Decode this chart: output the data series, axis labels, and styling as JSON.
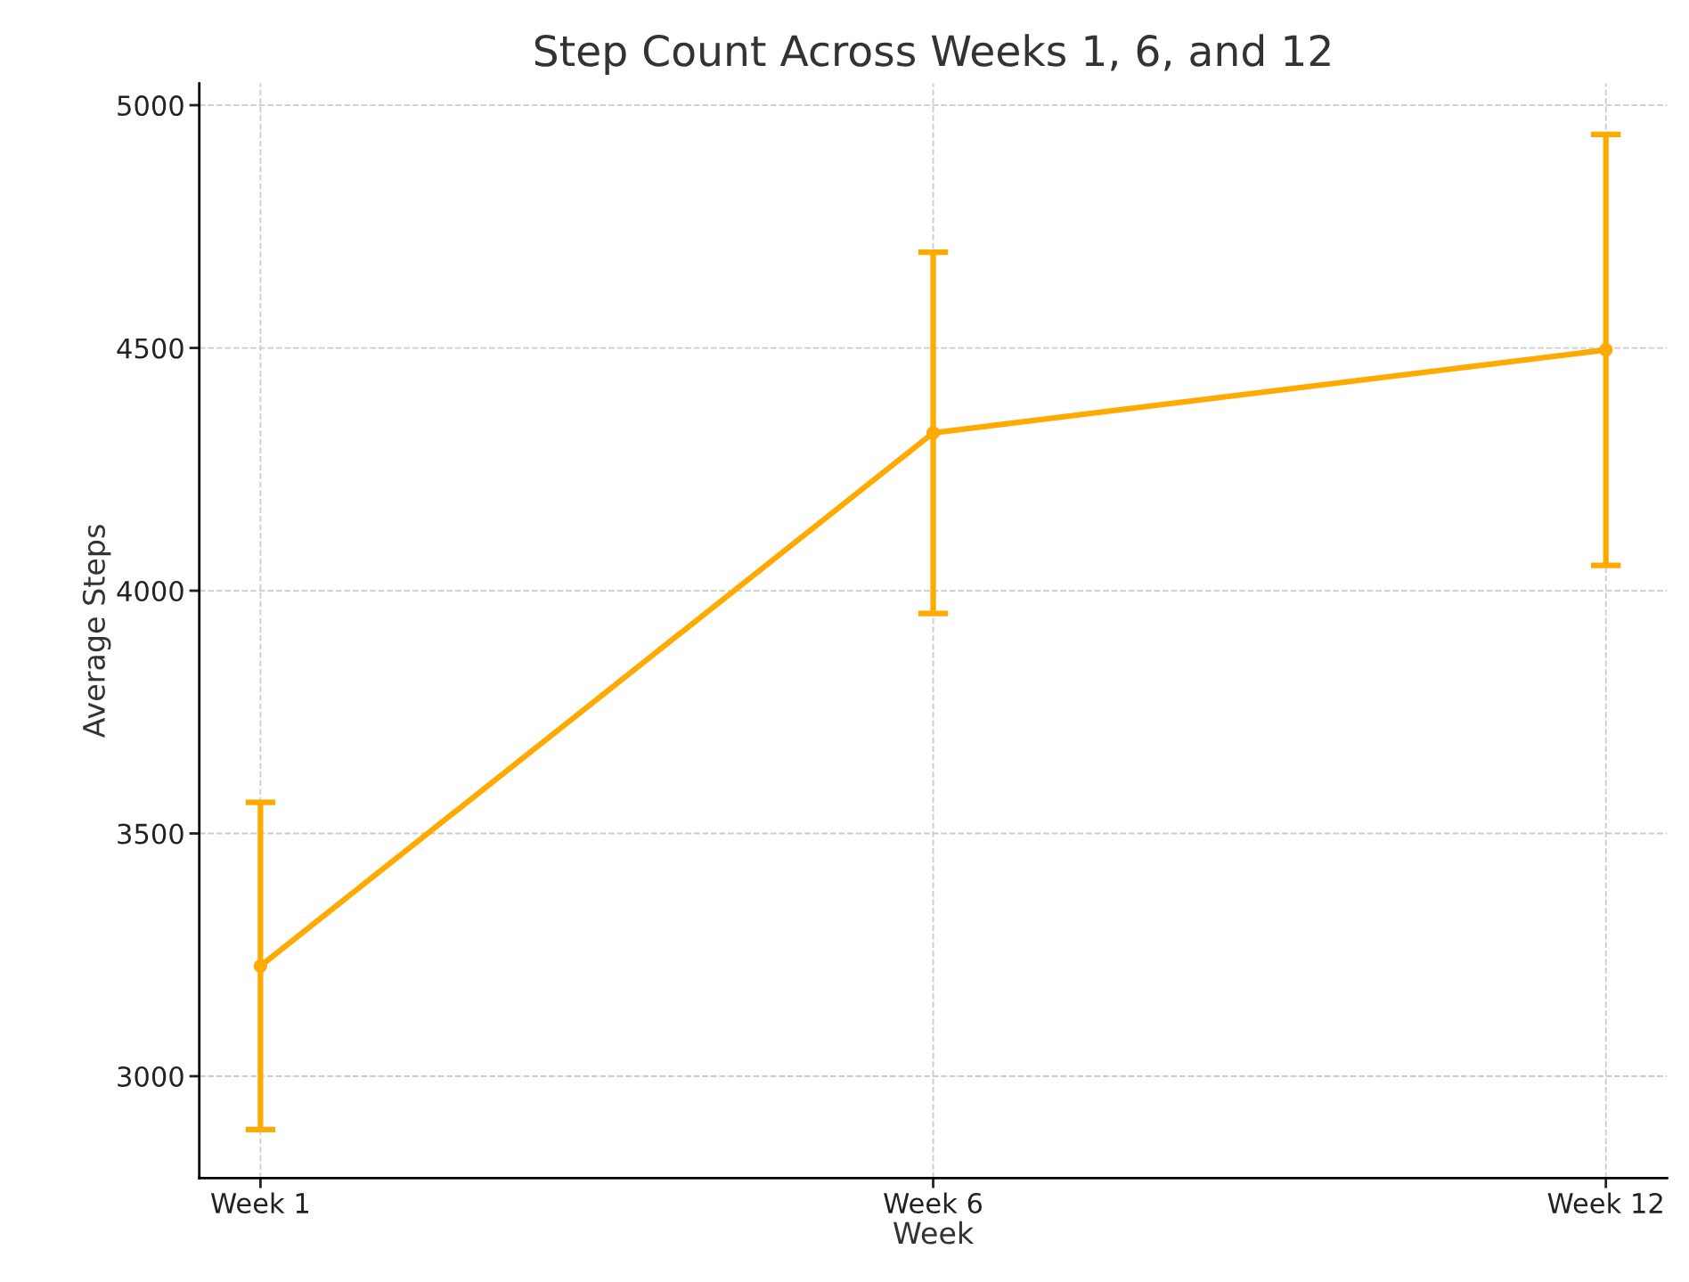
{
  "chart_data": {
    "type": "line",
    "title": "Step Count Across Weeks 1, 6, and 12",
    "xlabel": "Week",
    "ylabel": "Average Steps",
    "categories": [
      "Week 1",
      "Week 6",
      "Week 12"
    ],
    "series": [
      {
        "color": "#ffaa00",
        "values": [
          3227,
          4325,
          4496
        ],
        "errors": [
          337,
          372,
          444
        ]
      }
    ],
    "ylim": [
      2790,
      5045
    ],
    "yticks": [
      3000,
      3500,
      4000,
      4500,
      5000
    ],
    "grid": true,
    "marker": "circle",
    "line_style": "solid"
  }
}
